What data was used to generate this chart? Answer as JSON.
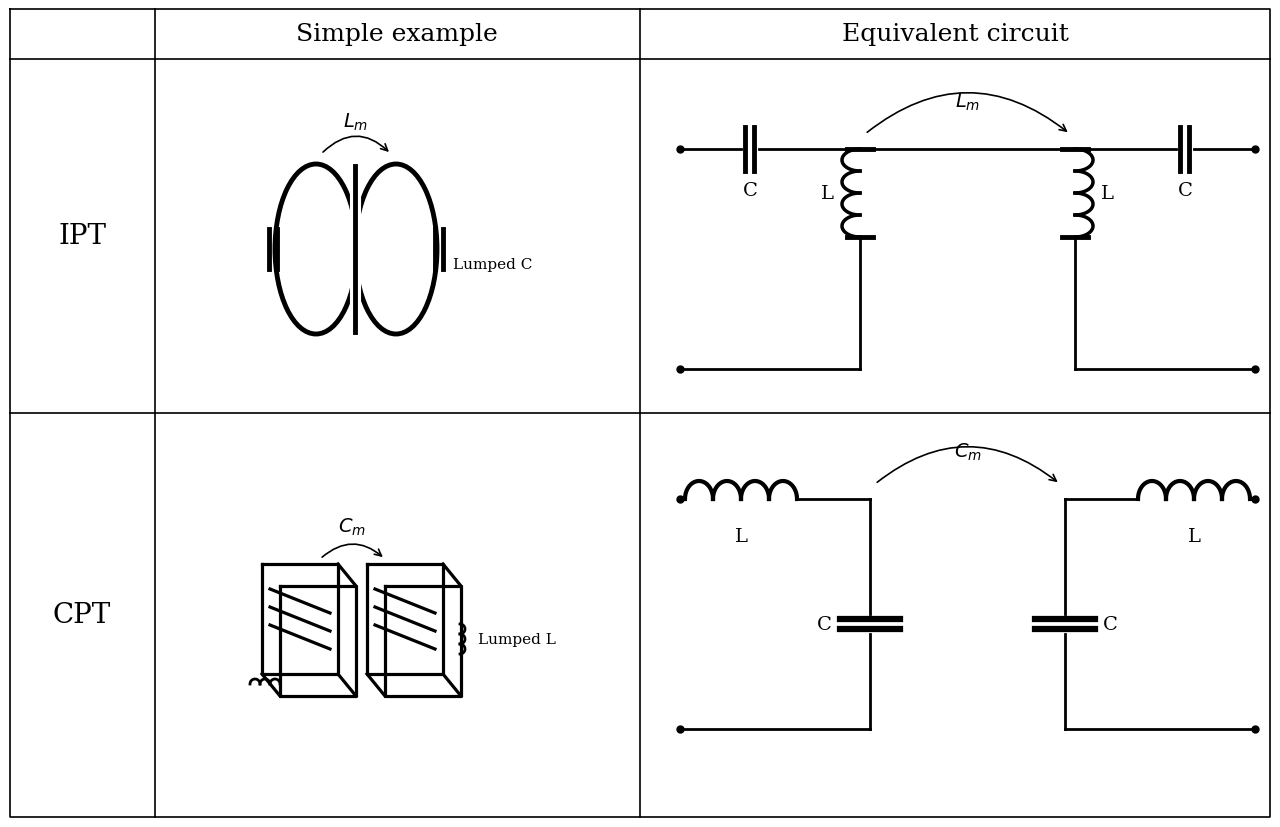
{
  "col2_label": "Simple example",
  "col3_label": "Equivalent circuit",
  "row1_label": "IPT",
  "row2_label": "CPT",
  "bg_color": "#ffffff",
  "line_color": "#000000",
  "lw": 2.0,
  "lw_thick": 3.5,
  "font_size_header": 18,
  "font_size_label": 20,
  "font_size_component": 14
}
